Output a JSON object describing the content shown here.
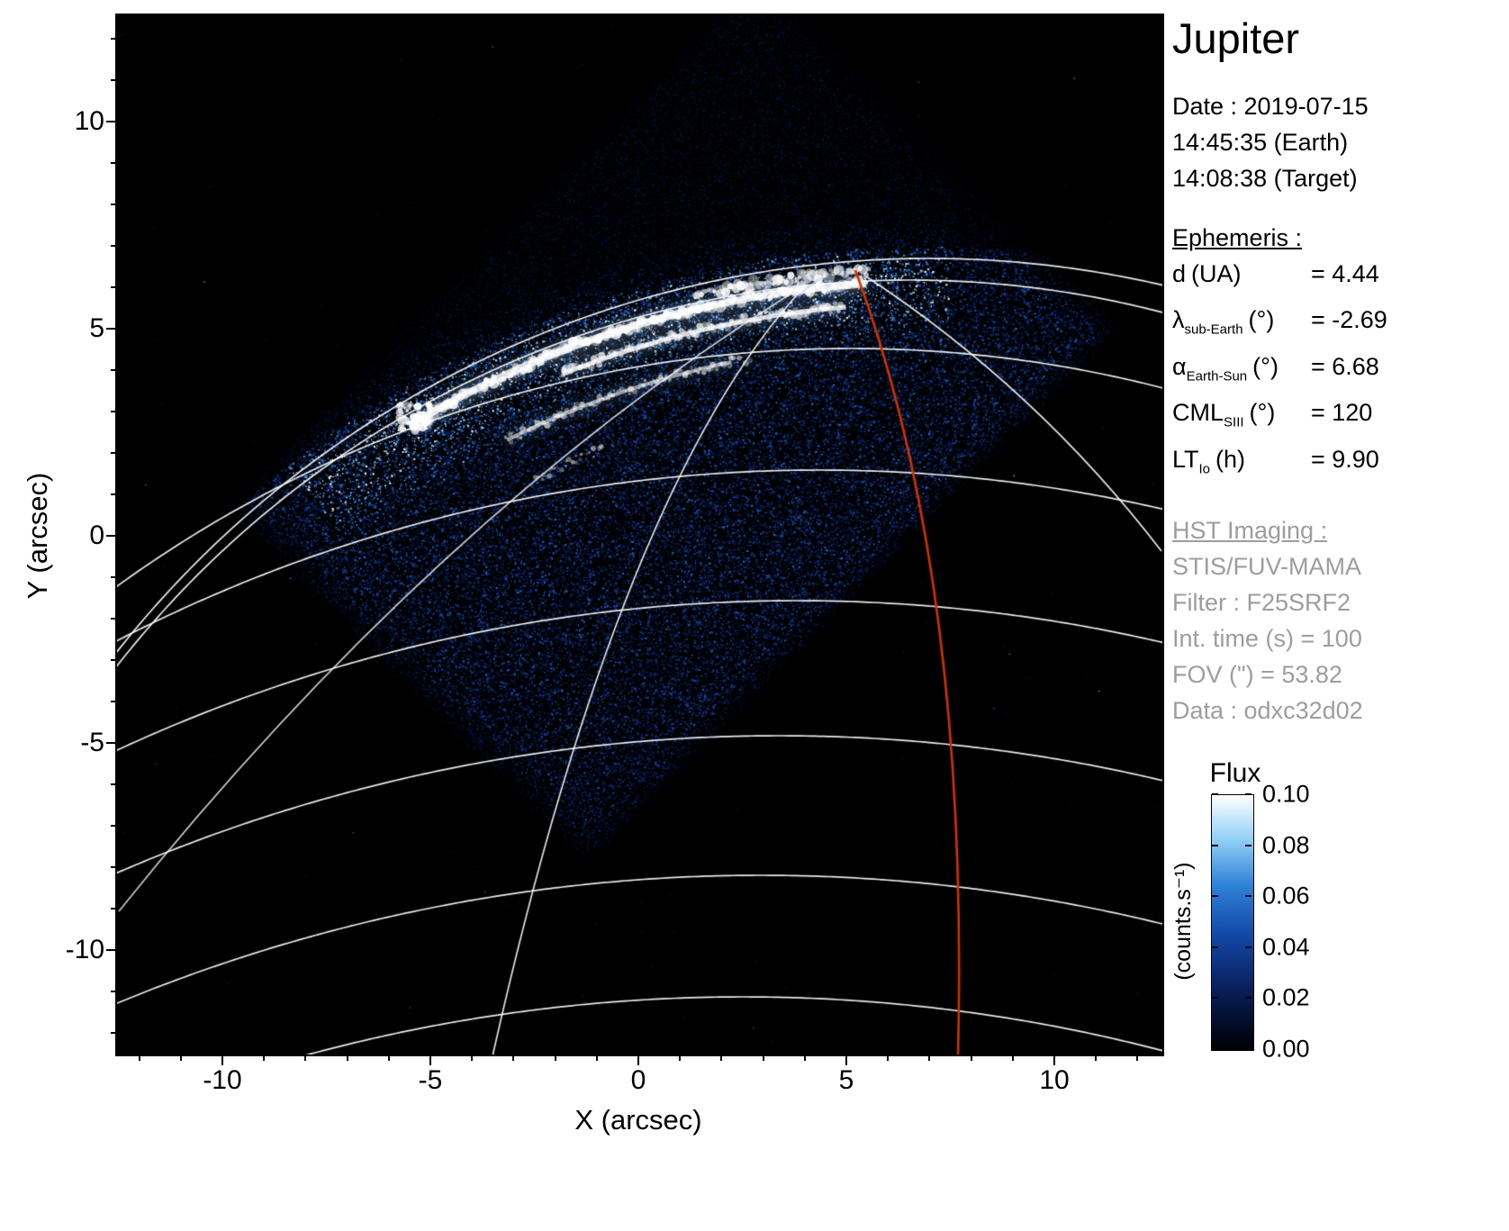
{
  "title": "Jupiter",
  "colors": {
    "accent_red": "#d43000",
    "plot_background": "#000000",
    "graticule_white": "#ffffff",
    "panel_gray": "#9d9d9d",
    "colormap_stops": [
      "#000003",
      "#081c55",
      "#1248a8",
      "#2f83d8",
      "#8ecdf5",
      "#ffffff"
    ]
  },
  "info_panel": {
    "title": "Jupiter",
    "date_lines": [
      "Date : 2019-07-15",
      "14:45:35 (Earth)",
      "14:08:38 (Target)"
    ],
    "ephemeris": {
      "heading": "Ephemeris :",
      "lines": [
        {
          "sym": "d",
          "sub": "",
          "unit": "(UA)",
          "val": "= 4.44"
        },
        {
          "sym": "λ",
          "sub": "sub-Earth",
          "unit": "(°)",
          "val": "= -2.69"
        },
        {
          "sym": "α",
          "sub": "Earth-Sun",
          "unit": "(°)",
          "val": "= 6.68"
        },
        {
          "sym": "CML",
          "sub": "SIII",
          "unit": "(°)",
          "val": "= 120"
        },
        {
          "sym": "LT",
          "sub": "Io",
          "unit": "(h)",
          "val": "= 9.90"
        }
      ]
    },
    "hst": {
      "heading": "HST Imaging :",
      "lines": [
        "STIS/FUV-MAMA",
        "Filter : F25SRF2",
        "Int. time (s) = 100",
        "FOV (\") = 53.82",
        "Data : odxc32d02"
      ]
    }
  },
  "chart_data": {
    "type": "heatmap",
    "title": "Jupiter",
    "xlabel": "X (arcsec)",
    "ylabel": "Y (arcsec)",
    "xlim": [
      -12.6,
      12.6
    ],
    "ylim": [
      -12.6,
      12.6
    ],
    "x_ticks": [
      "-10",
      "-5",
      "0",
      "5",
      "10"
    ],
    "y_ticks": [
      "10",
      "5",
      "0",
      "-5",
      "-10"
    ],
    "grid": "white planetocentric graticule (limb, latitude arcs, meridians) overlaid on image",
    "colorbar": {
      "title": "Flux",
      "unit_label": "(counts.s⁻¹)",
      "ticks": [
        "0.10",
        "0.08",
        "0.06",
        "0.04",
        "0.02",
        "0.00"
      ],
      "range": [
        0.0,
        0.1
      ],
      "colormap": "black → dark blue → blue → light blue → white"
    },
    "content": {
      "description": "HST STIS FUV-MAMA image of Jupiter's northern ultraviolet aurora: square detector field rotated ~45° filled with speckled blue counts, bright white main auroral oval arcs near the planetary limb between x≈-6 and x≈5 arcsec at y≈4–7 arcsec, dark sky elsewhere",
      "detector_fov_arcsec": 53.82,
      "overlays": [
        {
          "name": "planet-limb",
          "color": "#ffffff"
        },
        {
          "name": "latitude-arcs",
          "color": "#ffffff"
        },
        {
          "name": "meridian-arcs",
          "color": "#ffffff"
        },
        {
          "name": "highlighted-meridian",
          "color": "#d43000"
        }
      ]
    }
  }
}
